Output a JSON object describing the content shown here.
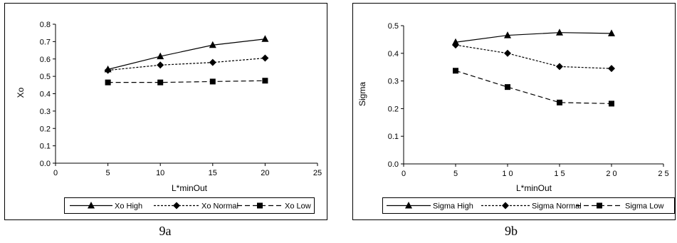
{
  "chart_data": [
    {
      "type": "line",
      "xlabel": "L*minOut",
      "ylabel": "Xo",
      "xlim": [
        0,
        25
      ],
      "ylim": [
        0,
        0.8
      ],
      "xticks": [
        "0",
        "5",
        "10",
        "15",
        "20",
        "25"
      ],
      "yticks": [
        "0.0",
        "0.1",
        "0.2",
        "0.3",
        "0.4",
        "0.5",
        "0.6",
        "0.7",
        "0.8"
      ],
      "grid": false,
      "legend_position": "bottom",
      "series": [
        {
          "name": "Xo High",
          "marker": "triangle",
          "line": "solid",
          "x": [
            5,
            10,
            15,
            20
          ],
          "y": [
            0.54,
            0.615,
            0.68,
            0.715
          ]
        },
        {
          "name": "Xo Normal",
          "marker": "diamond",
          "line": "dotted",
          "x": [
            5,
            10,
            15,
            20
          ],
          "y": [
            0.535,
            0.565,
            0.58,
            0.605
          ]
        },
        {
          "name": "Xo Low",
          "marker": "square",
          "line": "dashed",
          "x": [
            5,
            10,
            15,
            20
          ],
          "y": [
            0.465,
            0.465,
            0.47,
            0.475
          ]
        }
      ],
      "caption": "9a"
    },
    {
      "type": "line",
      "xlabel": "L*minOut",
      "ylabel": "Sigma",
      "xlim": [
        0,
        25
      ],
      "ylim": [
        0,
        0.5
      ],
      "xticks": [
        "0",
        "5",
        "1 0",
        "1 5",
        "2 0",
        "2 5"
      ],
      "yticks": [
        "0.0",
        "0.1",
        "0.2",
        "0.3",
        "0.4",
        "0.5"
      ],
      "grid": false,
      "legend_position": "bottom",
      "series": [
        {
          "name": "Sigma High",
          "marker": "triangle",
          "line": "solid",
          "x": [
            5,
            10,
            15,
            20
          ],
          "y": [
            0.44,
            0.465,
            0.475,
            0.472
          ]
        },
        {
          "name": "Sigma Normal",
          "marker": "diamond",
          "line": "dotted",
          "x": [
            5,
            10,
            15,
            20
          ],
          "y": [
            0.43,
            0.4,
            0.352,
            0.345
          ]
        },
        {
          "name": "Sigma Low",
          "marker": "square",
          "line": "dashed",
          "x": [
            5,
            10,
            15,
            20
          ],
          "y": [
            0.337,
            0.278,
            0.222,
            0.218
          ]
        }
      ],
      "caption": "9b"
    }
  ]
}
